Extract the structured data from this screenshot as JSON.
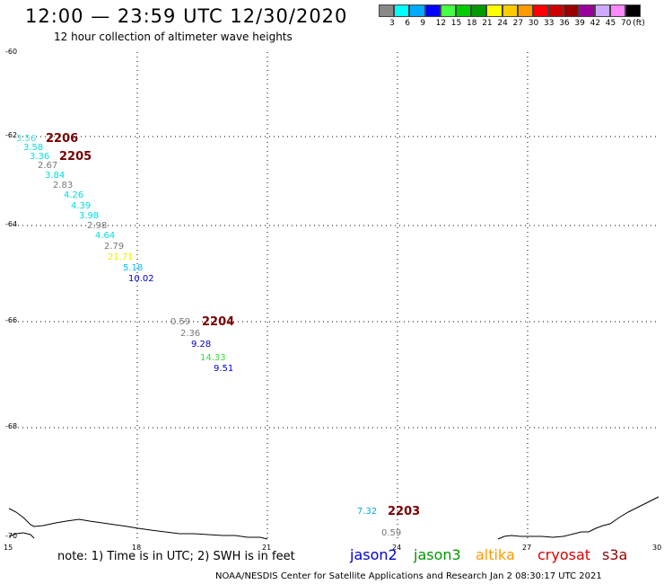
{
  "header": {
    "title": "12:00 — 23:59 UTC 12/30/2020",
    "subtitle": "12 hour collection of altimeter wave heights"
  },
  "legend": {
    "colors": [
      "#888888",
      "#00ffff",
      "#00aaff",
      "#0000ff",
      "#44ff44",
      "#00cc00",
      "#009900",
      "#ffff00",
      "#ffcc00",
      "#ff9900",
      "#ff0000",
      "#cc0000",
      "#990000",
      "#990099",
      "#ccaaff",
      "#ff88ff",
      "#000000"
    ],
    "labels": [
      "3",
      "6",
      "9",
      "12",
      "15",
      "18",
      "21",
      "24",
      "27",
      "30",
      "33",
      "36",
      "39",
      "42",
      "45",
      "70",
      "(ft)"
    ]
  },
  "axes": {
    "lat_labels": [
      "-60",
      "-62",
      "-64",
      "-66",
      "-68",
      "-70"
    ],
    "lon_labels": [
      "15",
      "18",
      "21",
      "24",
      "27",
      "30"
    ]
  },
  "observations": [
    {
      "value": "3.56",
      "color": "#44dddd"
    },
    {
      "value": "3.58",
      "color": "#00dddd"
    },
    {
      "value": "3.36",
      "color": "#00dddd"
    },
    {
      "value": "2.67",
      "color": "#777777"
    },
    {
      "value": "3.84",
      "color": "#00dddd"
    },
    {
      "value": "2.83",
      "color": "#777777"
    },
    {
      "value": "4.26",
      "color": "#00dddd"
    },
    {
      "value": "4.39",
      "color": "#00dddd"
    },
    {
      "value": "3.98",
      "color": "#00dddd"
    },
    {
      "value": "2.98",
      "color": "#777777"
    },
    {
      "value": "4.64",
      "color": "#00dddd"
    },
    {
      "value": "2.79",
      "color": "#777777"
    },
    {
      "value": "21.71",
      "color": "#eeee00"
    },
    {
      "value": "5.18",
      "color": "#00bbff"
    },
    {
      "value": "10.02",
      "color": "#0000cc"
    },
    {
      "value": "0.59",
      "color": "#777777"
    },
    {
      "value": "2.36",
      "color": "#777777"
    },
    {
      "value": "9.28",
      "color": "#0000cc"
    },
    {
      "value": "14.33",
      "color": "#33dd33"
    },
    {
      "value": "9.51",
      "color": "#0000cc"
    },
    {
      "value": "7.32",
      "color": "#00aaee"
    },
    {
      "value": "0.59",
      "color": "#777777"
    }
  ],
  "passes": [
    "2206",
    "2205",
    "2204",
    "2203"
  ],
  "footer": {
    "note": "note: 1) Time is in UTC; 2) SWH is in feet",
    "satellites": [
      {
        "name": "jason2",
        "color": "#0000cc"
      },
      {
        "name": "jason3",
        "color": "#009900"
      },
      {
        "name": "altika",
        "color": "#ff9900"
      },
      {
        "name": "cryosat",
        "color": "#dd0000"
      },
      {
        "name": "s3a",
        "color": "#990000"
      }
    ],
    "credit": "NOAA/NESDIS Center for Satellite Applications and Research   Jan  2 08:30:17 UTC 2021"
  }
}
